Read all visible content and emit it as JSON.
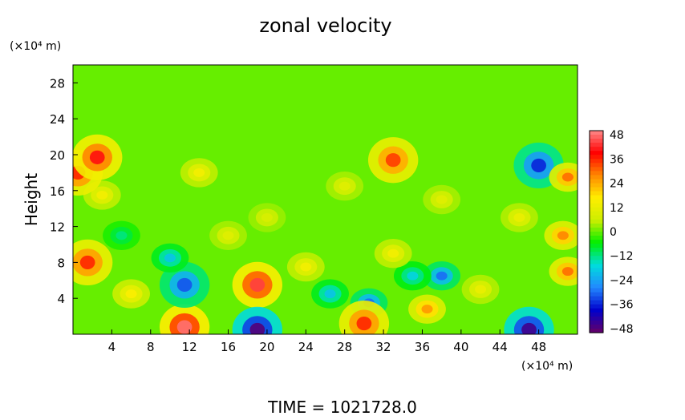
{
  "chart_data": {
    "type": "heatmap",
    "title": "zonal velocity",
    "ylabel": "Height",
    "y_unit": "(×10⁴ m)",
    "x_unit": "(×10⁴ m)",
    "xlim": [
      0,
      52
    ],
    "ylim": [
      0,
      30
    ],
    "x_ticks": [
      4,
      8,
      12,
      16,
      20,
      24,
      28,
      32,
      36,
      40,
      44,
      48
    ],
    "y_ticks": [
      4,
      8,
      12,
      16,
      20,
      24,
      28
    ],
    "colorbar": {
      "ticks": [
        48,
        36,
        24,
        12,
        0,
        -12,
        -24,
        -36,
        -48
      ],
      "range": [
        -50,
        50
      ],
      "colormap": [
        "#660066",
        "#0000cc",
        "#2288ff",
        "#00dddd",
        "#00ee00",
        "#ccee00",
        "#ffee00",
        "#ff8800",
        "#ff0000",
        "#ff8888"
      ]
    },
    "features": [
      {
        "x": 11.5,
        "y": 0.8,
        "value": 48
      },
      {
        "x": 19,
        "y": 5.5,
        "value": 44
      },
      {
        "x": 11.5,
        "y": 5.5,
        "value": -32
      },
      {
        "x": 10,
        "y": 8.5,
        "value": -20
      },
      {
        "x": 19,
        "y": 0.5,
        "value": -48
      },
      {
        "x": 30.5,
        "y": 3.5,
        "value": -30
      },
      {
        "x": 26.5,
        "y": 4.5,
        "value": -20
      },
      {
        "x": 30,
        "y": 1.2,
        "value": 36
      },
      {
        "x": 38,
        "y": 6.5,
        "value": -30
      },
      {
        "x": 35,
        "y": 6.5,
        "value": -18
      },
      {
        "x": 47,
        "y": 0.5,
        "value": -46
      },
      {
        "x": 36.5,
        "y": 2.8,
        "value": 26
      },
      {
        "x": 1.5,
        "y": 8,
        "value": 36
      },
      {
        "x": 51,
        "y": 7,
        "value": 30
      },
      {
        "x": 6,
        "y": 4.5,
        "value": 16
      },
      {
        "x": 24,
        "y": 7.5,
        "value": 14
      },
      {
        "x": 33,
        "y": 9,
        "value": 14
      },
      {
        "x": 42,
        "y": 5,
        "value": 12
      },
      {
        "x": 16,
        "y": 11,
        "value": 10
      },
      {
        "x": 3,
        "y": 15.5,
        "value": 14
      },
      {
        "x": 46,
        "y": 13,
        "value": 12
      },
      {
        "x": 50.5,
        "y": 11,
        "value": 28
      },
      {
        "x": 48,
        "y": 18.8,
        "value": -36
      },
      {
        "x": 51,
        "y": 17.5,
        "value": 30
      },
      {
        "x": 0.5,
        "y": 18,
        "value": 36
      },
      {
        "x": 33,
        "y": 19.4,
        "value": 34
      },
      {
        "x": 2.5,
        "y": 19.7,
        "value": 40
      },
      {
        "x": 20,
        "y": 13,
        "value": 8
      },
      {
        "x": 38,
        "y": 15,
        "value": 10
      },
      {
        "x": 5,
        "y": 11,
        "value": -12
      },
      {
        "x": 13,
        "y": 18,
        "value": 14
      },
      {
        "x": 28,
        "y": 16.5,
        "value": 10
      }
    ]
  },
  "footer": {
    "time_label": "TIME  =  1021728.0"
  }
}
